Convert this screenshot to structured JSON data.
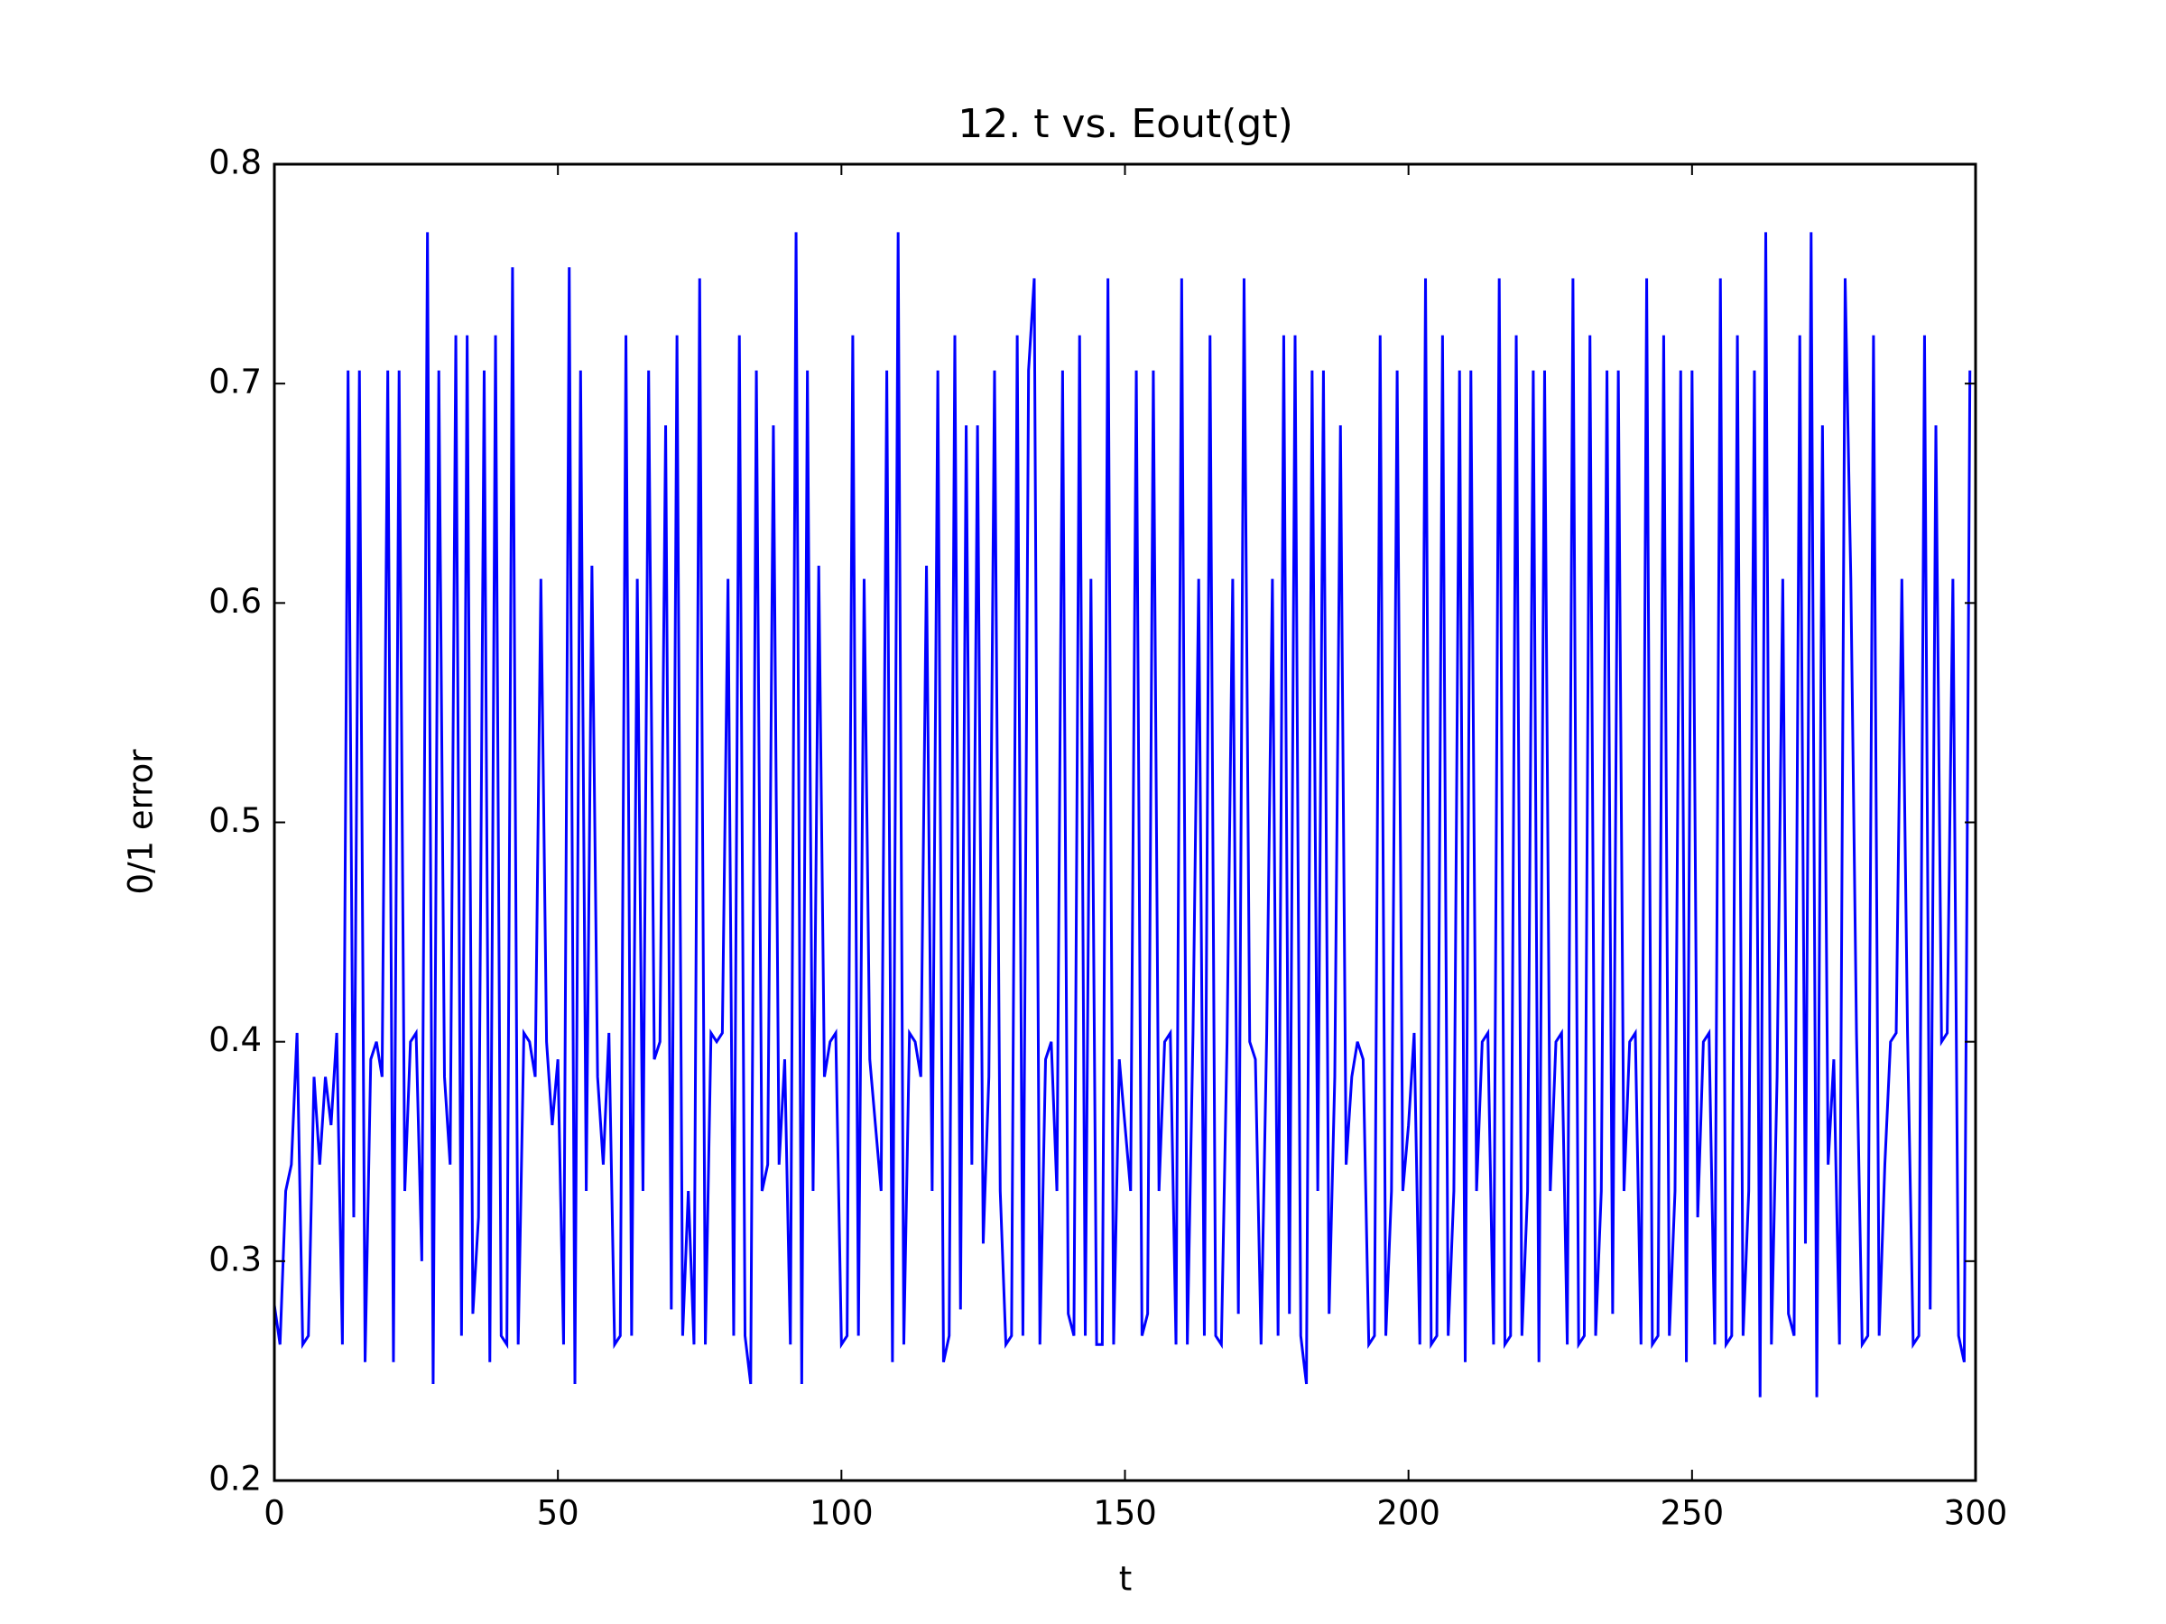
{
  "chart_data": {
    "type": "line",
    "title": "12. t vs. Eout(gt)",
    "x_label": "t",
    "y_label": "0/1 error",
    "color": "#0000ff",
    "xlim": [
      0,
      300
    ],
    "xticks": [
      0,
      50,
      100,
      150,
      200,
      250,
      300
    ],
    "ylim": [
      0.2,
      0.8
    ],
    "yticks": [
      0.2,
      0.3,
      0.4,
      0.5,
      0.6,
      0.7,
      0.8
    ],
    "x": [
      0,
      1,
      2,
      3,
      4,
      5,
      6,
      7,
      8,
      9,
      10,
      11,
      12,
      13,
      14,
      15,
      16,
      17,
      18,
      19,
      20,
      21,
      22,
      23,
      24,
      25,
      26,
      27,
      28,
      29,
      30,
      31,
      32,
      33,
      34,
      35,
      36,
      37,
      38,
      39,
      40,
      41,
      42,
      43,
      44,
      45,
      46,
      47,
      48,
      49,
      50,
      51,
      52,
      53,
      54,
      55,
      56,
      57,
      58,
      59,
      60,
      61,
      62,
      63,
      64,
      65,
      66,
      67,
      68,
      69,
      70,
      71,
      72,
      73,
      74,
      75,
      76,
      77,
      78,
      79,
      80,
      81,
      82,
      83,
      84,
      85,
      86,
      87,
      88,
      89,
      90,
      91,
      92,
      93,
      94,
      95,
      96,
      97,
      98,
      99,
      100,
      101,
      102,
      103,
      104,
      105,
      106,
      107,
      108,
      109,
      110,
      111,
      112,
      113,
      114,
      115,
      116,
      117,
      118,
      119,
      120,
      121,
      122,
      123,
      124,
      125,
      126,
      127,
      128,
      129,
      130,
      131,
      132,
      133,
      134,
      135,
      136,
      137,
      138,
      139,
      140,
      141,
      142,
      143,
      144,
      145,
      146,
      147,
      148,
      149,
      150,
      151,
      152,
      153,
      154,
      155,
      156,
      157,
      158,
      159,
      160,
      161,
      162,
      163,
      164,
      165,
      166,
      167,
      168,
      169,
      170,
      171,
      172,
      173,
      174,
      175,
      176,
      177,
      178,
      179,
      180,
      181,
      182,
      183,
      184,
      185,
      186,
      187,
      188,
      189,
      190,
      191,
      192,
      193,
      194,
      195,
      196,
      197,
      198,
      199,
      200,
      201,
      202,
      203,
      204,
      205,
      206,
      207,
      208,
      209,
      210,
      211,
      212,
      213,
      214,
      215,
      216,
      217,
      218,
      219,
      220,
      221,
      222,
      223,
      224,
      225,
      226,
      227,
      228,
      229,
      230,
      231,
      232,
      233,
      234,
      235,
      236,
      237,
      238,
      239,
      240,
      241,
      242,
      243,
      244,
      245,
      246,
      247,
      248,
      249,
      250,
      251,
      252,
      253,
      254,
      255,
      256,
      257,
      258,
      259,
      260,
      261,
      262,
      263,
      264,
      265,
      266,
      267,
      268,
      269,
      270,
      271,
      272,
      273,
      274,
      275,
      276,
      277,
      278,
      279,
      280,
      281,
      282,
      283,
      284,
      285,
      286,
      287,
      288,
      289,
      290,
      291,
      292,
      293,
      294,
      295,
      296,
      297,
      298,
      299
    ],
    "values": [
      0.28,
      0.262,
      0.332,
      0.344,
      0.404,
      0.262,
      0.266,
      0.384,
      0.344,
      0.384,
      0.362,
      0.404,
      0.262,
      0.706,
      0.32,
      0.706,
      0.254,
      0.392,
      0.4,
      0.384,
      0.706,
      0.254,
      0.706,
      0.332,
      0.4,
      0.404,
      0.3,
      0.769,
      0.244,
      0.706,
      0.384,
      0.344,
      0.722,
      0.266,
      0.722,
      0.276,
      0.32,
      0.706,
      0.254,
      0.722,
      0.266,
      0.262,
      0.753,
      0.262,
      0.404,
      0.4,
      0.384,
      0.611,
      0.4,
      0.362,
      0.392,
      0.262,
      0.753,
      0.244,
      0.706,
      0.332,
      0.617,
      0.384,
      0.344,
      0.404,
      0.262,
      0.266,
      0.722,
      0.266,
      0.611,
      0.332,
      0.706,
      0.392,
      0.4,
      0.681,
      0.278,
      0.722,
      0.266,
      0.332,
      0.262,
      0.748,
      0.262,
      0.404,
      0.4,
      0.404,
      0.611,
      0.266,
      0.722,
      0.266,
      0.244,
      0.706,
      0.332,
      0.344,
      0.681,
      0.344,
      0.392,
      0.262,
      0.769,
      0.244,
      0.706,
      0.332,
      0.617,
      0.384,
      0.4,
      0.404,
      0.262,
      0.266,
      0.722,
      0.266,
      0.611,
      0.392,
      0.362,
      0.332,
      0.706,
      0.254,
      0.769,
      0.262,
      0.404,
      0.4,
      0.384,
      0.617,
      0.332,
      0.706,
      0.254,
      0.266,
      0.722,
      0.278,
      0.681,
      0.344,
      0.681,
      0.308,
      0.384,
      0.706,
      0.332,
      0.262,
      0.266,
      0.722,
      0.266,
      0.706,
      0.748,
      0.262,
      0.392,
      0.4,
      0.332,
      0.706,
      0.276,
      0.266,
      0.722,
      0.266,
      0.611,
      0.262,
      0.262,
      0.748,
      0.262,
      0.392,
      0.362,
      0.332,
      0.706,
      0.266,
      0.276,
      0.706,
      0.332,
      0.4,
      0.404,
      0.262,
      0.748,
      0.262,
      0.404,
      0.611,
      0.266,
      0.722,
      0.266,
      0.262,
      0.4,
      0.611,
      0.276,
      0.748,
      0.4,
      0.392,
      0.262,
      0.404,
      0.611,
      0.266,
      0.722,
      0.276,
      0.722,
      0.266,
      0.244,
      0.706,
      0.332,
      0.706,
      0.276,
      0.384,
      0.681,
      0.344,
      0.384,
      0.4,
      0.392,
      0.262,
      0.266,
      0.722,
      0.266,
      0.332,
      0.706,
      0.332,
      0.362,
      0.404,
      0.262,
      0.748,
      0.262,
      0.266,
      0.722,
      0.266,
      0.332,
      0.706,
      0.254,
      0.706,
      0.332,
      0.4,
      0.404,
      0.262,
      0.748,
      0.262,
      0.266,
      0.722,
      0.266,
      0.332,
      0.706,
      0.254,
      0.706,
      0.332,
      0.4,
      0.404,
      0.262,
      0.748,
      0.262,
      0.266,
      0.722,
      0.266,
      0.332,
      0.706,
      0.276,
      0.706,
      0.332,
      0.4,
      0.404,
      0.262,
      0.748,
      0.262,
      0.266,
      0.722,
      0.266,
      0.332,
      0.706,
      0.254,
      0.706,
      0.32,
      0.4,
      0.404,
      0.262,
      0.748,
      0.262,
      0.266,
      0.722,
      0.266,
      0.332,
      0.706,
      0.238,
      0.769,
      0.262,
      0.384,
      0.611,
      0.276,
      0.266,
      0.722,
      0.308,
      0.769,
      0.238,
      0.681,
      0.344,
      0.392,
      0.262,
      0.748,
      0.611,
      0.404,
      0.262,
      0.266,
      0.722,
      0.266,
      0.344,
      0.4,
      0.404,
      0.611,
      0.404,
      0.262,
      0.266,
      0.722,
      0.278,
      0.681,
      0.4,
      0.404,
      0.611,
      0.266,
      0.254,
      0.706
    ]
  }
}
